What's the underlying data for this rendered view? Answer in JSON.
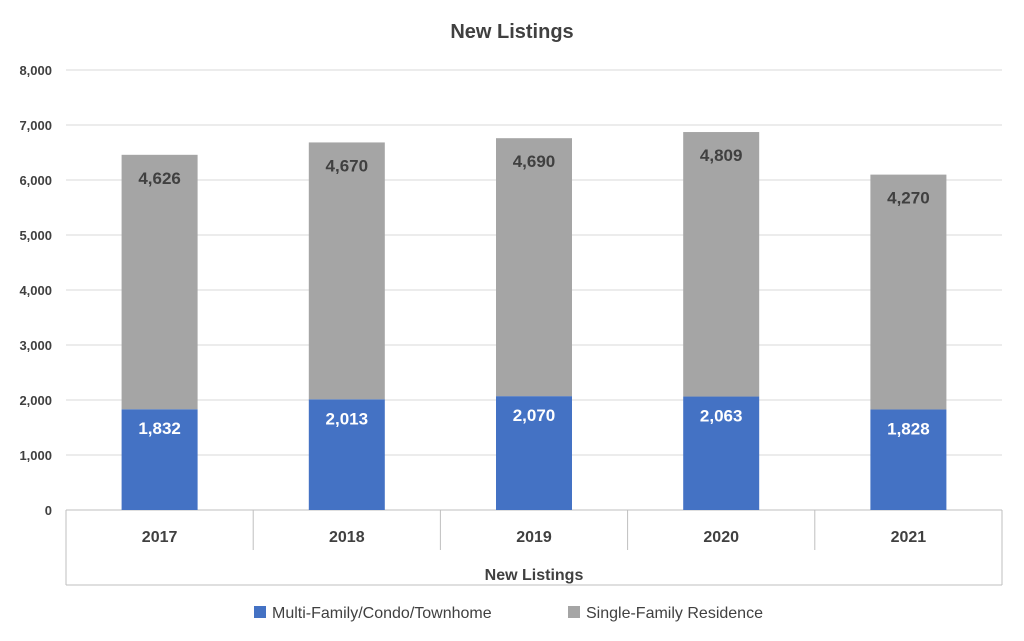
{
  "chart_data": {
    "type": "bar",
    "stacked": true,
    "title": "New Listings",
    "xlabel": "New Listings",
    "ylabel": "",
    "categories": [
      "2017",
      "2018",
      "2019",
      "2020",
      "2021"
    ],
    "series": [
      {
        "name": "Multi-Family/Condo/Townhome",
        "values": [
          1832,
          2013,
          2070,
          2063,
          1828
        ],
        "color": "#4472c4",
        "label_text": [
          "1,832",
          "2,013",
          "2,070",
          "2,063",
          "1,828"
        ]
      },
      {
        "name": "Single-Family Residence",
        "values": [
          4626,
          4670,
          4690,
          4809,
          4270
        ],
        "color": "#a5a5a5",
        "label_text": [
          "4,626",
          "4,670",
          "4,690",
          "4,809",
          "4,270"
        ]
      }
    ],
    "ylim": [
      0,
      8000
    ],
    "yticks": [
      0,
      1000,
      2000,
      3000,
      4000,
      5000,
      6000,
      7000,
      8000
    ],
    "ytick_labels": [
      "0",
      "1,000",
      "2,000",
      "3,000",
      "4,000",
      "5,000",
      "6,000",
      "7,000",
      "8,000"
    ],
    "grid": true,
    "legend_position": "bottom"
  }
}
